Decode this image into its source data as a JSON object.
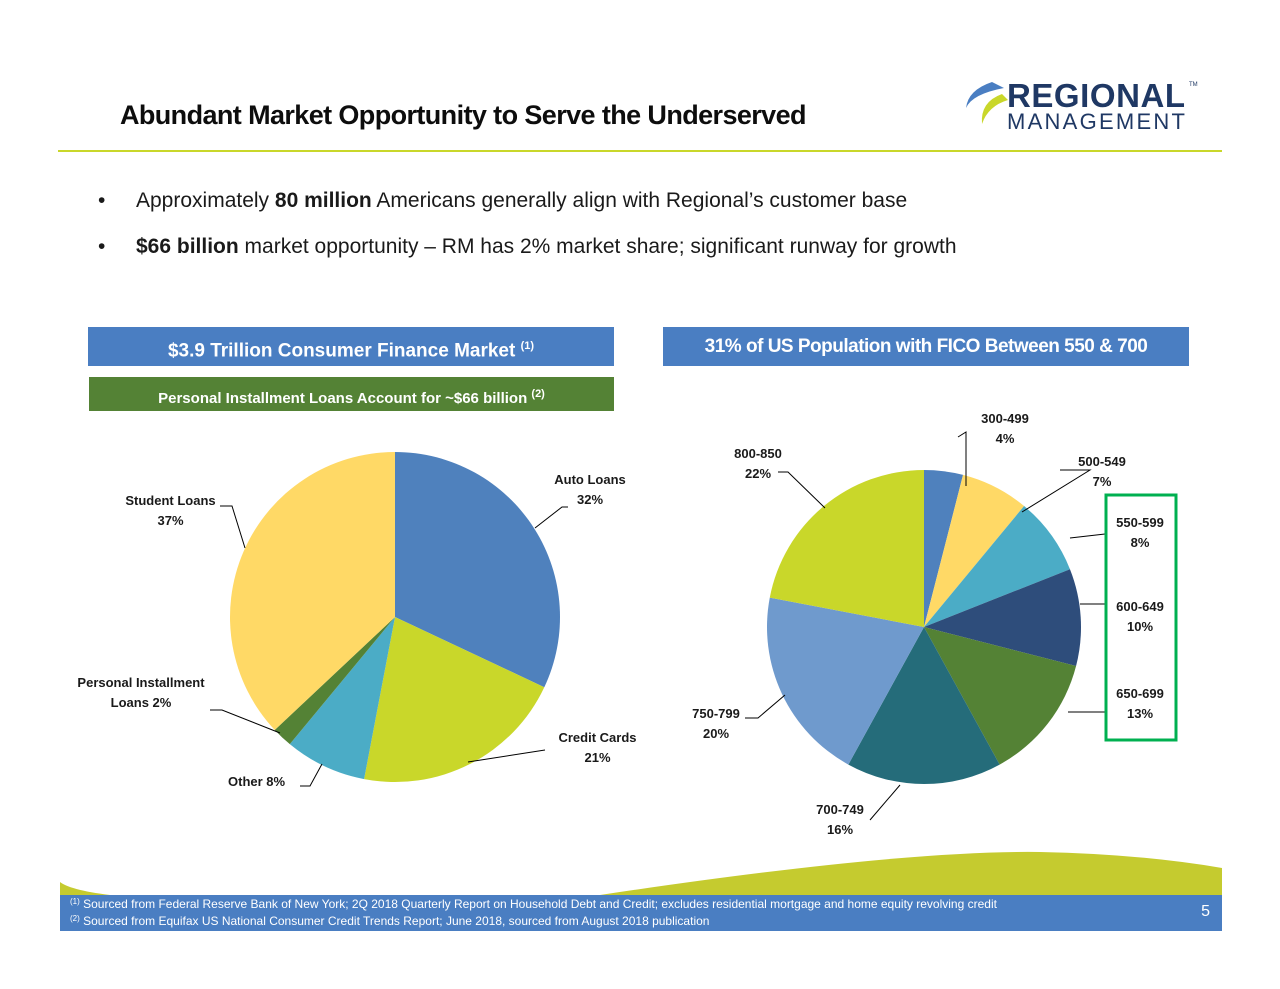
{
  "title": "Abundant Market Opportunity to Serve the Underserved",
  "logo": {
    "line1": "REGIONAL",
    "line2": "MANAGEMENT",
    "tm": "TM",
    "colors": {
      "navy": "#1F3864",
      "blue": "#4A7EC2",
      "green": "#C9D72A"
    }
  },
  "bullets": [
    {
      "pre": "Approximately ",
      "bold": "80 million",
      "post": " Americans generally align with Regional’s customer base"
    },
    {
      "pre": "",
      "bold": "$66 billion",
      "post": " market opportunity – RM has 2% market share; significant runway for growth"
    }
  ],
  "left_header": {
    "text": "$3.9 Trillion Consumer Finance Market ",
    "note": "(1)",
    "color": "#4A7EC2"
  },
  "left_subheader": {
    "text": "Personal Installment Loans Account for ~$66 billion ",
    "note": "(2)",
    "color": "#548235"
  },
  "right_header": {
    "text": "31% of US Population with FICO Between 550 & 700",
    "color": "#4A7EC2"
  },
  "highlight_color": "#00B050",
  "chart_data": [
    {
      "type": "pie",
      "title": "$3.9 Trillion Consumer Finance Market",
      "start": "top",
      "direction": "clockwise",
      "slices": [
        {
          "label": "Auto Loans",
          "value": 32,
          "text": "32%",
          "color": "#4F81BD"
        },
        {
          "label": "Credit Cards",
          "value": 21,
          "text": "21%",
          "color": "#C9D72A"
        },
        {
          "label": "Other",
          "value": 8,
          "text": "8%",
          "color": "#4BACC6"
        },
        {
          "label": "Personal Installment Loans",
          "value": 2,
          "text": "2%",
          "color": "#548235"
        },
        {
          "label": "Student Loans",
          "value": 37,
          "text": "37%",
          "color": "#FFD966"
        }
      ]
    },
    {
      "type": "pie",
      "title": "31% of US Population with FICO Between 550 & 700",
      "start": "top",
      "direction": "clockwise",
      "slices": [
        {
          "label": "300-499",
          "value": 4,
          "text": "4%",
          "color": "#4F81BD"
        },
        {
          "label": "500-549",
          "value": 7,
          "text": "7%",
          "color": "#FFD966"
        },
        {
          "label": "550-599",
          "value": 8,
          "text": "8%",
          "color": "#4BACC6"
        },
        {
          "label": "600-649",
          "value": 10,
          "text": "10%",
          "color": "#2E4D7B"
        },
        {
          "label": "650-699",
          "value": 13,
          "text": "13%",
          "color": "#548235"
        },
        {
          "label": "700-749",
          "value": 16,
          "text": "16%",
          "color": "#256C7A"
        },
        {
          "label": "750-799",
          "value": 20,
          "text": "20%",
          "color": "#6F9ACD"
        },
        {
          "label": "800-850",
          "value": 22,
          "text": "22%",
          "color": "#C9D72A"
        }
      ]
    }
  ],
  "left_labels": {
    "other": "Other 8%",
    "personal_1": "Personal Installment",
    "personal_2": "Loans 2%"
  },
  "footnotes": [
    {
      "mark": "(1)",
      "text": " Sourced from Federal Reserve Bank of New York; 2Q 2018 Quarterly Report on Household Debt and Credit; excludes residential mortgage and home equity revolving credit"
    },
    {
      "mark": "(2)",
      "text": " Sourced from Equifax US National Consumer Credit Trends Report;  June 2018, sourced from August 2018 publication"
    }
  ],
  "page_number": "5"
}
